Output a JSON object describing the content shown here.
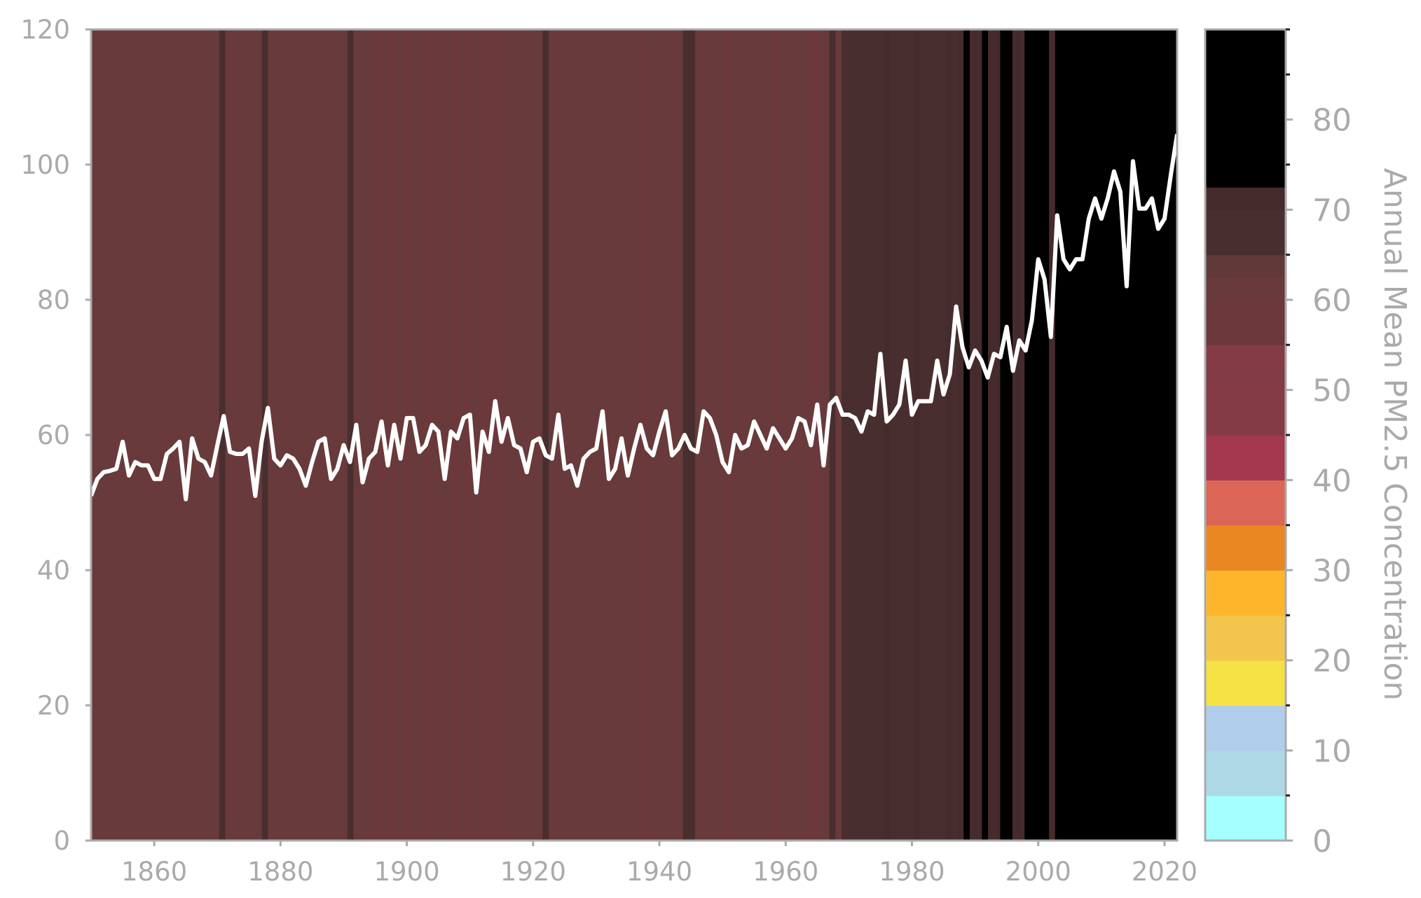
{
  "chart_data": {
    "type": "line",
    "title": "",
    "xlabel": "",
    "ylabel": "",
    "xlim": [
      1850,
      2022
    ],
    "ylim": [
      0,
      120
    ],
    "x_ticks": [
      1860,
      1880,
      1900,
      1920,
      1940,
      1960,
      1980,
      2000,
      2020
    ],
    "y_ticks": [
      0,
      20,
      40,
      60,
      80,
      100,
      120
    ],
    "grid": false,
    "background_stripes": true,
    "series": [
      {
        "color": "#ffffff",
        "x_start": 1850,
        "x_step": 1,
        "values": [
          51,
          53.5,
          54.5,
          54.7,
          55,
          59,
          54,
          56,
          55.5,
          55.5,
          53.5,
          53.5,
          57.2,
          58,
          59,
          50.5,
          59.5,
          56.5,
          56,
          54,
          58.5,
          62.8,
          57.5,
          57.2,
          57.2,
          58,
          51,
          59,
          64,
          56.5,
          55.5,
          57,
          56.5,
          55,
          52.5,
          56,
          59,
          59.5,
          53.5,
          55,
          58.5,
          56,
          61.5,
          53,
          56.5,
          57.5,
          62,
          55.5,
          61.5,
          56.5,
          62.5,
          62.5,
          57.5,
          58.5,
          61.5,
          60.5,
          53.5,
          60.5,
          59.5,
          62.5,
          63,
          51.5,
          60.5,
          57.5,
          65,
          59,
          62.5,
          58.5,
          58,
          54.5,
          59,
          59.5,
          57,
          56.5,
          63,
          55,
          55.5,
          52.5,
          56.5,
          57.5,
          58,
          63.5,
          53.5,
          55,
          59.5,
          54,
          58,
          61.5,
          58,
          57,
          60.5,
          63.5,
          57,
          58,
          60,
          58,
          57.5,
          63.5,
          62.5,
          60,
          56,
          54.5,
          60,
          58,
          58.5,
          62,
          60,
          58,
          61,
          59.5,
          58,
          59.5,
          62.5,
          62,
          58.5,
          64.5,
          55.5,
          64.5,
          65.5,
          63,
          63,
          62.5,
          60.5,
          63.5,
          63,
          72,
          62,
          63,
          64.5,
          71,
          63,
          65,
          65,
          65,
          71,
          66,
          69,
          79,
          73,
          70,
          72.5,
          71,
          68.5,
          72,
          71.5,
          76,
          69.5,
          74,
          72.5,
          77,
          86,
          83,
          74.5,
          92.5,
          86,
          84.5,
          86,
          86,
          92,
          95,
          92,
          95,
          99,
          96,
          82,
          100.5,
          93.5,
          93.5,
          95,
          90.5,
          92,
          98.5,
          104.5
        ]
      }
    ],
    "stripe_values": [
      60,
      60,
      60,
      60,
      60,
      60,
      60,
      60,
      60,
      60,
      60,
      60,
      60,
      60,
      60,
      60,
      60,
      60,
      60,
      60,
      60,
      65,
      60,
      60,
      60,
      60,
      60,
      60,
      65,
      60,
      60,
      60,
      60,
      60,
      60,
      60,
      60,
      60,
      60,
      60,
      60,
      60,
      65,
      60,
      60,
      60,
      60,
      55,
      60,
      55,
      60,
      55,
      60,
      60,
      60,
      55,
      60,
      60,
      60,
      55,
      60,
      55,
      60,
      60,
      55,
      60,
      55,
      60,
      60,
      60,
      60,
      60,
      60,
      60,
      65,
      60,
      60,
      60,
      60,
      60,
      60,
      60,
      60,
      60,
      60,
      60,
      60,
      60,
      60,
      60,
      55,
      60,
      60,
      60,
      60,
      60,
      60,
      65,
      65,
      60,
      60,
      60,
      60,
      60,
      55,
      60,
      60,
      60,
      60,
      60,
      60,
      60,
      55,
      60,
      60,
      60,
      60,
      60,
      55,
      60,
      60,
      65,
      60,
      65,
      65,
      65,
      65,
      65,
      65,
      65,
      70,
      65,
      65,
      65,
      65,
      70,
      65,
      65,
      65,
      65,
      70,
      65,
      70,
      75,
      70,
      70,
      75,
      70,
      70,
      75,
      75,
      70,
      70,
      75,
      85,
      85,
      85,
      70,
      85,
      85,
      85,
      85,
      85,
      85,
      85,
      85,
      85,
      85,
      85,
      85,
      85,
      85,
      85,
      85,
      85,
      85,
      85,
      85
    ],
    "colorbar": {
      "label": "Annual Mean PM2.5 Concentration",
      "min": 0,
      "max": 90,
      "bounds": [
        0,
        5,
        10,
        15,
        20,
        25,
        30,
        35,
        40,
        45,
        50,
        55,
        60,
        65,
        70,
        75,
        80,
        85,
        90
      ],
      "colors": [
        "#a5ffff",
        "#a5ffff",
        "#add8e6",
        "#add8e6",
        "#b0cdec",
        "#b0cdec",
        "#f6e245",
        "#f6e245",
        "#f2c54d",
        "#f2c54d",
        "#fdb62b",
        "#fdb62b",
        "#e98722",
        "#e98722",
        "#dc6656",
        "#dc6656",
        "#a3384f",
        "#a3384f",
        "#853b46",
        "#853b46",
        "#833b46",
        "#853b46",
        "#6c383c",
        "#6c383c",
        "#693a3b",
        "#623939",
        "#482e2f",
        "#482e2f",
        "#452b2b",
        "#000000",
        "#000000",
        "#000000",
        "#000000",
        "#000000",
        "#000000",
        "#000000"
      ],
      "ticks": [
        0,
        10,
        20,
        30,
        40,
        50,
        60,
        70,
        80
      ]
    }
  }
}
